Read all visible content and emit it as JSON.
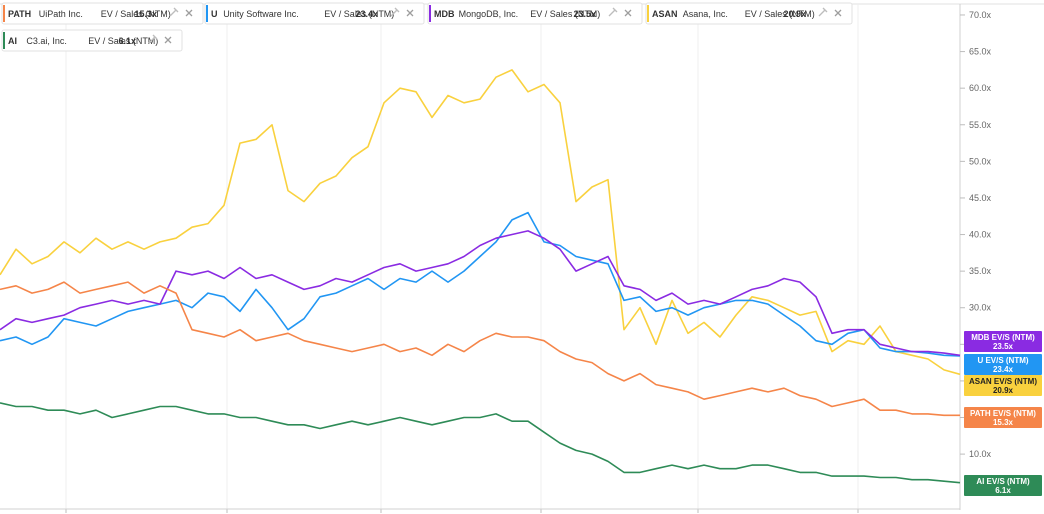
{
  "legend": [
    {
      "ticker": "PATH",
      "name": "UiPath Inc.",
      "metric": "EV / Sales (NTM)",
      "value": "15.3x",
      "color": "#F58549"
    },
    {
      "ticker": "U",
      "name": "Unity Software Inc.",
      "metric": "EV / Sales (NTM)",
      "value": "23.4x",
      "color": "#2196F3"
    },
    {
      "ticker": "MDB",
      "name": "MongoDB, Inc.",
      "metric": "EV / Sales (NTM)",
      "value": "23.5x",
      "color": "#8A2BE2"
    },
    {
      "ticker": "ASAN",
      "name": "Asana, Inc.",
      "metric": "EV / Sales (NTM)",
      "value": "20.9x",
      "color": "#F9D13E"
    },
    {
      "ticker": "AI",
      "name": "C3.ai, Inc.",
      "metric": "EV / Sales (NTM)",
      "value": "6.1x",
      "color": "#2E8B57"
    }
  ],
  "icons": {
    "pin": "pin-icon",
    "close": "close-icon"
  },
  "chart_data": {
    "type": "line",
    "xlabel": "",
    "ylabel": "",
    "ylim": [
      2.5,
      71.5
    ],
    "y_ticks": [
      "10.0x",
      "15.0x",
      "20.0x",
      "25.0x",
      "30.0x",
      "35.0x",
      "40.0x",
      "45.0x",
      "50.0x",
      "55.0x",
      "60.0x",
      "65.0x",
      "70.0x"
    ],
    "y_tick_values": [
      10,
      15,
      20,
      25,
      30,
      35,
      40,
      45,
      50,
      55,
      60,
      65,
      70
    ],
    "x_ticks": [
      "",
      "",
      "",
      "",
      "",
      ""
    ],
    "grid": {
      "vertical": true,
      "horizontal": false
    },
    "legend_position": "top-left",
    "x": [
      0,
      1,
      2,
      3,
      4,
      5,
      6,
      7,
      8,
      9,
      10,
      11,
      12,
      13,
      14,
      15,
      16,
      17,
      18,
      19,
      20,
      21,
      22,
      23,
      24,
      25,
      26,
      27,
      28,
      29,
      30,
      31,
      32,
      33,
      34,
      35,
      36,
      37,
      38,
      39,
      40,
      41,
      42,
      43,
      44,
      45,
      46,
      47,
      48,
      49,
      50,
      51,
      52,
      53,
      54,
      55,
      56,
      57,
      58,
      59,
      60
    ],
    "series": [
      {
        "name": "ASAN",
        "color": "#F9D13E",
        "end_label": "ASAN EV/S (NTM)",
        "end_value": "20.9x",
        "values": [
          34.5,
          38.0,
          36.0,
          37.0,
          39.0,
          37.5,
          39.5,
          38.0,
          39.0,
          38.0,
          39.0,
          39.5,
          41.0,
          41.5,
          44.0,
          52.5,
          53.0,
          55.0,
          46.0,
          44.5,
          47.0,
          48.0,
          50.5,
          52.0,
          58.0,
          60.0,
          59.5,
          56.0,
          59.0,
          58.0,
          58.5,
          61.5,
          62.5,
          59.5,
          60.5,
          58.0,
          44.5,
          46.5,
          47.5,
          27.0,
          30.0,
          25.0,
          31.0,
          26.5,
          28.0,
          26.0,
          29.0,
          31.5,
          31.0,
          30.0,
          29.0,
          29.5,
          24.0,
          25.5,
          25.0,
          27.5,
          24.0,
          23.5,
          23.0,
          21.5,
          20.9
        ]
      },
      {
        "name": "U",
        "color": "#2196F3",
        "end_label": "U EV/S (NTM)",
        "end_value": "23.4x",
        "values": [
          25.5,
          26.0,
          25.0,
          26.0,
          28.5,
          28.0,
          27.5,
          28.5,
          29.5,
          30.0,
          30.5,
          31.0,
          30.0,
          32.0,
          31.5,
          29.5,
          32.5,
          30.0,
          27.0,
          28.5,
          31.5,
          32.0,
          33.0,
          34.0,
          32.5,
          34.0,
          33.5,
          35.0,
          33.5,
          35.0,
          37.0,
          39.0,
          42.0,
          43.0,
          39.0,
          38.5,
          37.0,
          36.5,
          36.0,
          31.0,
          31.5,
          29.5,
          30.0,
          29.0,
          30.0,
          30.5,
          31.0,
          31.0,
          30.5,
          29.0,
          27.5,
          25.5,
          25.0,
          26.5,
          27.0,
          24.5,
          24.0,
          24.0,
          23.8,
          23.5,
          23.4
        ]
      },
      {
        "name": "MDB",
        "color": "#8A2BE2",
        "end_label": "MDB EV/S (NTM)",
        "end_value": "23.5x",
        "values": [
          27.0,
          28.5,
          28.0,
          28.5,
          29.0,
          30.0,
          30.5,
          31.0,
          30.5,
          31.0,
          30.5,
          35.0,
          34.5,
          35.0,
          34.0,
          35.5,
          34.0,
          34.5,
          33.5,
          32.5,
          33.0,
          34.0,
          33.5,
          34.5,
          35.5,
          36.0,
          35.0,
          35.5,
          36.0,
          37.0,
          38.5,
          39.5,
          40.0,
          40.5,
          39.5,
          38.0,
          35.0,
          36.0,
          37.0,
          33.0,
          32.5,
          31.0,
          32.0,
          30.5,
          31.0,
          30.5,
          31.5,
          32.5,
          33.0,
          34.0,
          33.5,
          31.5,
          26.5,
          27.0,
          27.0,
          25.0,
          24.5,
          24.0,
          24.0,
          23.8,
          23.5
        ]
      },
      {
        "name": "PATH",
        "color": "#F58549",
        "end_label": "PATH EV/S (NTM)",
        "end_value": "15.3x",
        "values": [
          32.5,
          33.0,
          32.0,
          32.5,
          33.5,
          32.0,
          32.5,
          33.0,
          33.5,
          32.0,
          33.0,
          32.0,
          27.0,
          26.5,
          26.0,
          27.0,
          25.5,
          26.0,
          26.5,
          25.5,
          25.0,
          24.5,
          24.0,
          24.5,
          25.0,
          24.0,
          24.5,
          23.5,
          25.0,
          24.0,
          25.5,
          26.5,
          26.0,
          26.0,
          25.5,
          24.0,
          23.0,
          22.5,
          21.0,
          20.0,
          21.0,
          19.5,
          19.0,
          18.5,
          17.5,
          18.0,
          18.5,
          19.0,
          18.5,
          19.0,
          18.0,
          17.5,
          16.5,
          17.0,
          17.5,
          16.0,
          16.0,
          15.5,
          15.5,
          15.3,
          15.3
        ]
      },
      {
        "name": "AI",
        "color": "#2E8B57",
        "end_label": "AI EV/S (NTM)",
        "end_value": "6.1x",
        "values": [
          17.0,
          16.5,
          16.5,
          16.0,
          16.0,
          15.5,
          16.0,
          15.0,
          15.5,
          16.0,
          16.5,
          16.5,
          16.0,
          15.5,
          15.5,
          15.0,
          15.0,
          14.5,
          14.0,
          14.0,
          13.5,
          14.0,
          14.5,
          14.0,
          14.5,
          15.0,
          14.5,
          14.0,
          14.5,
          15.0,
          15.0,
          15.5,
          14.5,
          14.5,
          13.0,
          11.5,
          10.5,
          10.0,
          9.0,
          7.5,
          7.5,
          8.0,
          8.5,
          8.0,
          8.5,
          8.0,
          8.0,
          8.5,
          8.5,
          8.0,
          7.5,
          7.5,
          7.0,
          7.0,
          7.0,
          6.8,
          6.8,
          6.5,
          6.5,
          6.3,
          6.1
        ]
      }
    ]
  }
}
